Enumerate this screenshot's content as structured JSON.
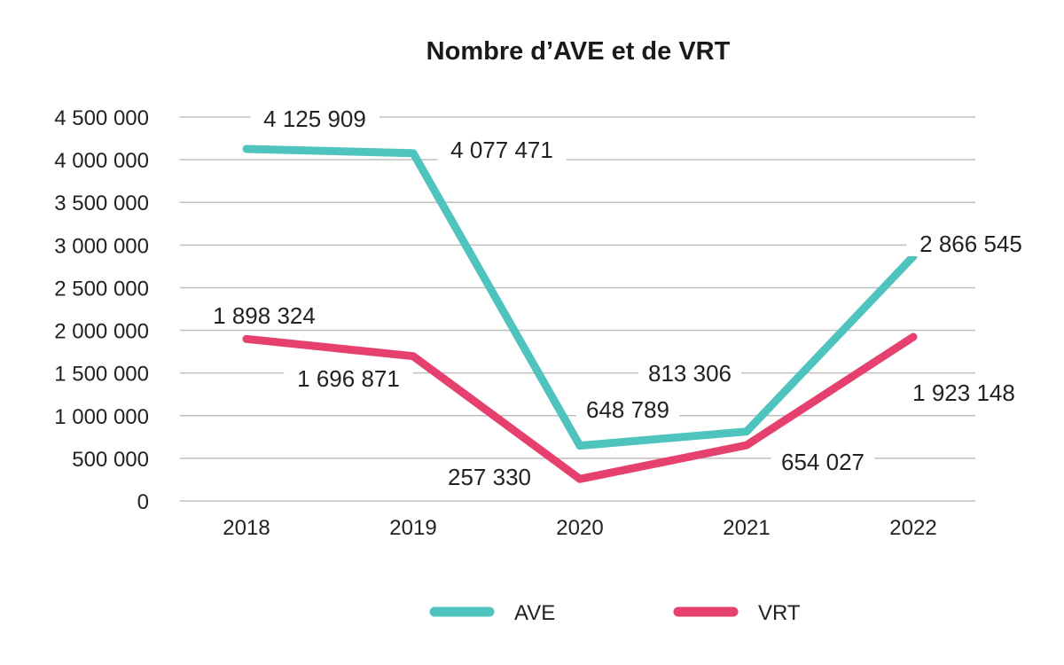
{
  "chart_data": {
    "type": "line",
    "title": "Nombre d’AVE et de VRT",
    "xlabel": "",
    "ylabel": "",
    "categories": [
      "2018",
      "2019",
      "2020",
      "2021",
      "2022"
    ],
    "ylim": [
      0,
      4500000
    ],
    "yticks": [
      0,
      500000,
      1000000,
      1500000,
      2000000,
      2500000,
      3000000,
      3500000,
      4000000,
      4500000
    ],
    "ytick_labels": [
      "0",
      "500 000",
      "1 000 000",
      "1 500 000",
      "2 000 000",
      "2 500 000",
      "3 000 000",
      "3 500 000",
      "4 000 000",
      "4 500 000"
    ],
    "grid": true,
    "legend_position": "bottom",
    "series": [
      {
        "name": "AVE",
        "color": "#4fc3bd",
        "values": [
          4125909,
          4077471,
          648789,
          813306,
          2866545
        ],
        "labels": [
          "4 125 909",
          "4 077 471",
          "648 789",
          "813 306",
          "2 866 545"
        ]
      },
      {
        "name": "VRT",
        "color": "#e6416e",
        "values": [
          1898324,
          1696871,
          257330,
          654027,
          1923148
        ],
        "labels": [
          "1 898 324",
          "1 696 871",
          "257 330",
          "654 027",
          "1 923 148"
        ]
      }
    ]
  }
}
